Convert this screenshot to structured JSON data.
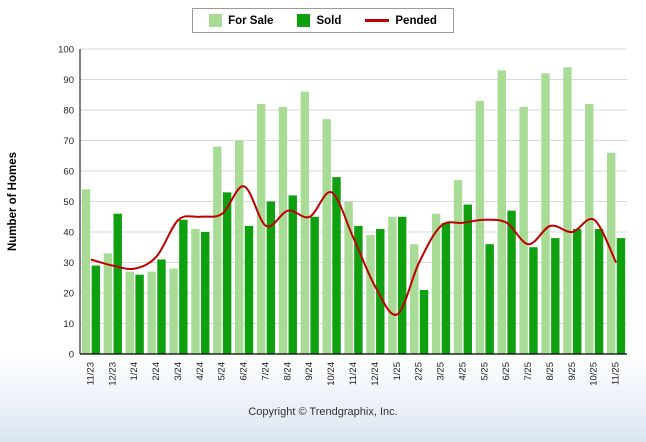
{
  "chart_data": {
    "type": "bar",
    "title": "",
    "xlabel": "",
    "ylabel": "Number of Homes",
    "ylim": [
      0,
      100
    ],
    "ytick_step": 10,
    "grid": true,
    "legend_position": "top-center",
    "categories": [
      "11/23",
      "12/23",
      "1/24",
      "2/24",
      "3/24",
      "4/24",
      "5/24",
      "6/24",
      "7/24",
      "8/24",
      "9/24",
      "10/24",
      "11/24",
      "12/24",
      "1/25",
      "2/25",
      "3/25",
      "4/25",
      "5/25",
      "6/25",
      "7/25",
      "8/25",
      "9/25",
      "10/25",
      "11/25"
    ],
    "series": [
      {
        "name": "For Sale",
        "type": "bar",
        "color": "#A8DC96",
        "values": [
          54,
          33,
          27,
          27,
          28,
          41,
          68,
          70,
          82,
          81,
          86,
          77,
          50,
          39,
          45,
          36,
          46,
          57,
          83,
          93,
          81,
          92,
          94,
          82,
          66
        ]
      },
      {
        "name": "Sold",
        "type": "bar",
        "color": "#0FA00F",
        "values": [
          29,
          46,
          26,
          31,
          44,
          40,
          53,
          42,
          50,
          52,
          45,
          58,
          42,
          41,
          45,
          21,
          43,
          49,
          36,
          47,
          35,
          38,
          41,
          41,
          38
        ]
      },
      {
        "name": "Pended",
        "type": "line",
        "color": "#C00000",
        "values": [
          31,
          29,
          28,
          32,
          44,
          45,
          46,
          55,
          42,
          47,
          45,
          53,
          38,
          22,
          13,
          30,
          42,
          43,
          44,
          43,
          36,
          42,
          40,
          44,
          30
        ]
      }
    ]
  },
  "footer": {
    "copyright": "Copyright © Trendgraphix, Inc."
  }
}
